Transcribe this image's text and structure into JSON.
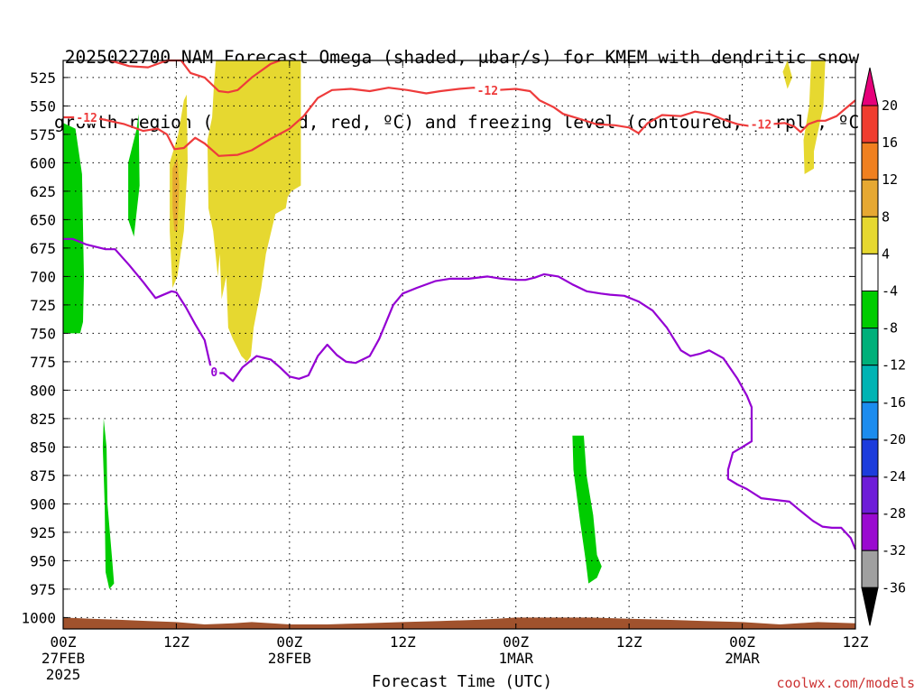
{
  "title": {
    "line1": "2025022700 NAM Forecast Omega (shaded, μbar/s) for KMEM with dendritic snow",
    "line2": "growth region (contoured, red, ºC) and freezing level (contoured, purple, ºC)"
  },
  "xlabel": "Forecast Time (UTC)",
  "credit": "coolwx.com/models",
  "colors": {
    "background": "#ffffff",
    "grid": "#000000",
    "snow_growth_contour": "#ee3b3b",
    "freezing_level_contour": "#9400d3",
    "terrain": "#a0522d"
  },
  "chart_data": {
    "type": "heatmap",
    "x_axis": {
      "ticks": [
        {
          "hour": 0,
          "label": "00Z",
          "sub": "27FEB",
          "sub2": "2025"
        },
        {
          "hour": 12,
          "label": "12Z"
        },
        {
          "hour": 24,
          "label": "00Z",
          "sub": "28FEB"
        },
        {
          "hour": 36,
          "label": "12Z"
        },
        {
          "hour": 48,
          "label": "00Z",
          "sub": "1MAR"
        },
        {
          "hour": 60,
          "label": "12Z"
        },
        {
          "hour": 72,
          "label": "00Z",
          "sub": "2MAR"
        },
        {
          "hour": 84,
          "label": "12Z"
        }
      ],
      "range_hours": [
        0,
        84
      ]
    },
    "y_axis": {
      "unit": "hPa",
      "range": [
        1010,
        510
      ],
      "ticks": [
        525,
        550,
        575,
        600,
        625,
        650,
        675,
        700,
        725,
        750,
        775,
        800,
        825,
        850,
        875,
        900,
        925,
        950,
        975,
        1000
      ]
    },
    "colorbar": {
      "labels": [
        "20",
        "16",
        "12",
        "8",
        "4",
        "-4",
        "-8",
        "-12",
        "-16",
        "-20",
        "-24",
        "-28",
        "-32",
        "-36"
      ],
      "levels": [
        20,
        16,
        12,
        8,
        4,
        -4,
        -8,
        -12,
        -16,
        -20,
        -24,
        -28,
        -32,
        -36
      ],
      "colors": [
        "#ee1c7a",
        "#f03d2f",
        "#f08020",
        "#e6a832",
        "#e6d830",
        "#ffffff",
        "#00cc00",
        "#00b07a",
        "#00b4b4",
        "#1c8cee",
        "#1c3cdc",
        "#6e1cd8",
        "#9a0ad0",
        "#a0a0a0"
      ],
      "top_color": "#e6007a",
      "bottom_color": "#000000"
    },
    "omega_regions": [
      {
        "level": "-8 to -4",
        "color": "#00cc00",
        "points": [
          [
            0,
            565
          ],
          [
            1.3,
            570
          ],
          [
            2,
            610
          ],
          [
            2.2,
            700
          ],
          [
            2.1,
            740
          ],
          [
            1.8,
            750
          ],
          [
            0,
            750
          ]
        ]
      },
      {
        "level": "-8 to -4",
        "color": "#00cc00",
        "points": [
          [
            7.8,
            570
          ],
          [
            8.0,
            557
          ],
          [
            8.1,
            620
          ],
          [
            7.5,
            665
          ],
          [
            6.9,
            650
          ],
          [
            6.9,
            600
          ]
        ]
      },
      {
        "level": "4 to 8",
        "color": "#e6d830",
        "points": [
          [
            11.3,
            600
          ],
          [
            12.2,
            575
          ],
          [
            12.8,
            545
          ],
          [
            13.1,
            540
          ],
          [
            13.2,
            600
          ],
          [
            12.8,
            660
          ],
          [
            12.1,
            700
          ],
          [
            11.6,
            710
          ],
          [
            11.3,
            660
          ]
        ]
      },
      {
        "level": "8 to 12",
        "color": "#e6a832",
        "points": [
          [
            11.6,
            605
          ],
          [
            12.1,
            595
          ],
          [
            12.3,
            620
          ],
          [
            12.1,
            660
          ],
          [
            11.8,
            660
          ],
          [
            11.6,
            640
          ]
        ]
      },
      {
        "level": "4 to 8",
        "color": "#e6d830",
        "points": [
          [
            16.2,
            510
          ],
          [
            25.2,
            510
          ],
          [
            25.2,
            620
          ],
          [
            24.2,
            625
          ],
          [
            23.8,
            630
          ],
          [
            23.6,
            640
          ],
          [
            22.5,
            645
          ],
          [
            21.5,
            680
          ],
          [
            21.0,
            710
          ],
          [
            20.2,
            745
          ],
          [
            19.9,
            770
          ],
          [
            19.5,
            775
          ],
          [
            18.9,
            770
          ],
          [
            18.0,
            755
          ],
          [
            17.5,
            745
          ],
          [
            17.3,
            700
          ],
          [
            16.8,
            720
          ],
          [
            16.6,
            680
          ],
          [
            16.4,
            700
          ],
          [
            15.9,
            660
          ],
          [
            15.4,
            640
          ],
          [
            15.3,
            580
          ],
          [
            15.8,
            560
          ],
          [
            16.0,
            530
          ]
        ]
      },
      {
        "level": "4 to 8",
        "color": "#e6d830",
        "points": [
          [
            76.8,
            510
          ],
          [
            77.3,
            525
          ],
          [
            76.8,
            535
          ],
          [
            76.3,
            520
          ]
        ]
      },
      {
        "level": "4 to 8",
        "color": "#e6d830",
        "points": [
          [
            79.3,
            510
          ],
          [
            80.8,
            510
          ],
          [
            80.6,
            550
          ],
          [
            79.6,
            590
          ],
          [
            79.6,
            605
          ],
          [
            78.6,
            610
          ],
          [
            78.5,
            580
          ],
          [
            79.1,
            550
          ]
        ]
      },
      {
        "level": "-8 to -4",
        "color": "#00cc00",
        "points": [
          [
            4.3,
            825
          ],
          [
            4.6,
            850
          ],
          [
            4.7,
            900
          ],
          [
            5.2,
            950
          ],
          [
            5.4,
            970
          ],
          [
            4.9,
            975
          ],
          [
            4.5,
            960
          ],
          [
            4.4,
            900
          ],
          [
            4.2,
            850
          ]
        ]
      },
      {
        "level": "-8 to -4",
        "color": "#00cc00",
        "points": [
          [
            54.0,
            840
          ],
          [
            55.2,
            840
          ],
          [
            55.5,
            875
          ],
          [
            56.2,
            910
          ],
          [
            56.6,
            945
          ],
          [
            57.1,
            955
          ],
          [
            56.6,
            965
          ],
          [
            55.7,
            970
          ],
          [
            55.4,
            950
          ],
          [
            54.8,
            915
          ],
          [
            54.1,
            870
          ]
        ]
      }
    ],
    "snow_growth_contours": [
      {
        "label": "-12",
        "label_at": [
          2.5,
          560
        ],
        "points": [
          [
            0,
            560
          ],
          [
            1.2,
            560
          ],
          [
            3.2,
            560
          ],
          [
            6.5,
            566
          ],
          [
            8.5,
            572
          ],
          [
            10.0,
            570
          ],
          [
            11.0,
            575
          ],
          [
            11.8,
            588
          ],
          [
            12.8,
            587
          ],
          [
            14.0,
            578
          ],
          [
            15.0,
            583
          ],
          [
            16.5,
            594
          ],
          [
            18.5,
            593
          ],
          [
            20.0,
            589
          ],
          [
            22.0,
            579
          ],
          [
            24.0,
            570
          ],
          [
            25.5,
            559
          ],
          [
            27.0,
            543
          ],
          [
            28.5,
            536
          ],
          [
            30.5,
            535
          ],
          [
            32.5,
            537
          ],
          [
            34.5,
            534
          ],
          [
            36.5,
            536
          ],
          [
            38.5,
            539
          ],
          [
            40.0,
            537
          ],
          [
            42.0,
            535
          ],
          [
            43.5,
            534
          ],
          [
            46.0,
            536
          ],
          [
            48.0,
            535
          ],
          [
            49.5,
            537
          ],
          [
            50.5,
            545
          ],
          [
            52.0,
            551
          ],
          [
            53.0,
            557
          ],
          [
            55.0,
            562
          ],
          [
            56.5,
            566
          ],
          [
            58.5,
            567
          ],
          [
            60.0,
            569
          ],
          [
            61.0,
            574
          ],
          [
            62.0,
            565
          ],
          [
            63.5,
            558
          ],
          [
            65.5,
            559
          ],
          [
            67.0,
            555
          ],
          [
            68.5,
            557
          ],
          [
            70.0,
            562
          ],
          [
            71.5,
            566
          ],
          [
            73.0,
            568
          ],
          [
            74.0,
            567
          ],
          [
            75.0,
            566
          ],
          [
            76.5,
            565
          ],
          [
            77.5,
            568
          ],
          [
            78.2,
            573
          ],
          [
            79.0,
            566
          ],
          [
            80.0,
            563
          ],
          [
            80.8,
            563
          ],
          [
            82.0,
            559
          ],
          [
            83.0,
            552
          ],
          [
            84.0,
            545
          ]
        ]
      },
      {
        "label": "-12",
        "label_at": [
          45.0,
          536
        ],
        "points": [
          [
            5.0,
            510
          ],
          [
            7.0,
            515
          ],
          [
            9.0,
            516
          ],
          [
            11.0,
            510
          ],
          [
            12.5,
            510
          ],
          [
            13.5,
            521
          ],
          [
            15.0,
            525
          ],
          [
            16.5,
            537
          ],
          [
            17.5,
            538
          ],
          [
            18.5,
            536
          ],
          [
            20.0,
            525
          ],
          [
            22.0,
            513
          ],
          [
            23.0,
            510
          ]
        ]
      },
      {
        "label": "-12",
        "label_at": [
          74.0,
          566
        ],
        "points": []
      }
    ],
    "freezing_level_contours": [
      {
        "label": "0",
        "label_at": [
          16.0,
          784
        ],
        "points": [
          [
            0,
            667
          ],
          [
            1.0,
            667
          ],
          [
            2.5,
            672
          ],
          [
            4.5,
            676
          ],
          [
            5.5,
            676
          ],
          [
            7.0,
            690
          ],
          [
            8.5,
            705
          ],
          [
            9.8,
            719
          ],
          [
            11.5,
            713
          ],
          [
            12.0,
            714
          ],
          [
            13.0,
            727
          ],
          [
            14.0,
            742
          ],
          [
            15.0,
            756
          ],
          [
            15.8,
            785
          ],
          [
            17.0,
            785
          ],
          [
            18.0,
            792
          ],
          [
            19.0,
            780
          ],
          [
            20.5,
            770
          ],
          [
            22.0,
            773
          ],
          [
            23.0,
            780
          ],
          [
            24.0,
            788
          ],
          [
            25.0,
            790
          ],
          [
            26.0,
            787
          ],
          [
            27.0,
            770
          ],
          [
            28.0,
            760
          ],
          [
            29.0,
            769
          ],
          [
            30.0,
            775
          ],
          [
            31.0,
            776
          ],
          [
            32.5,
            770
          ],
          [
            33.5,
            755
          ],
          [
            35.0,
            725
          ],
          [
            36.0,
            715
          ],
          [
            37.5,
            710
          ],
          [
            39.5,
            704
          ],
          [
            41.0,
            702
          ],
          [
            43.0,
            702
          ],
          [
            45.0,
            700
          ],
          [
            46.5,
            702
          ],
          [
            48.0,
            703
          ],
          [
            49.0,
            703
          ],
          [
            50.0,
            701
          ],
          [
            51.0,
            698
          ],
          [
            52.5,
            700
          ],
          [
            54.0,
            707
          ],
          [
            55.5,
            713
          ],
          [
            57.0,
            715
          ],
          [
            58.0,
            716
          ],
          [
            59.5,
            717
          ],
          [
            61.0,
            722
          ],
          [
            62.5,
            730
          ],
          [
            64.0,
            745
          ],
          [
            65.5,
            765
          ],
          [
            66.5,
            770
          ],
          [
            67.5,
            768
          ],
          [
            68.5,
            765
          ],
          [
            70.0,
            772
          ],
          [
            71.5,
            790
          ],
          [
            72.5,
            805
          ],
          [
            73.0,
            815
          ],
          [
            73.0,
            845
          ],
          [
            72.0,
            850
          ],
          [
            71.0,
            855
          ],
          [
            70.5,
            870
          ],
          [
            70.5,
            878
          ],
          [
            71.5,
            883
          ],
          [
            72.5,
            887
          ],
          [
            74.0,
            895
          ],
          [
            76.0,
            897
          ],
          [
            77.0,
            898
          ],
          [
            78.0,
            905
          ],
          [
            79.5,
            915
          ],
          [
            80.5,
            920
          ],
          [
            81.5,
            921
          ],
          [
            82.5,
            921
          ],
          [
            83.5,
            930
          ],
          [
            84.0,
            940
          ]
        ]
      }
    ],
    "terrain_top_hpa": [
      [
        0,
        1000
      ],
      [
        3,
        1001
      ],
      [
        6,
        1002
      ],
      [
        9,
        1003
      ],
      [
        12,
        1004
      ],
      [
        15,
        1006
      ],
      [
        18,
        1005
      ],
      [
        20,
        1004
      ],
      [
        24,
        1006
      ],
      [
        28,
        1006
      ],
      [
        32,
        1005
      ],
      [
        36,
        1004
      ],
      [
        40,
        1003
      ],
      [
        44,
        1002
      ],
      [
        46,
        1001
      ],
      [
        48,
        1000
      ],
      [
        52,
        1000
      ],
      [
        56,
        1000
      ],
      [
        60,
        1001
      ],
      [
        64,
        1002
      ],
      [
        68,
        1003
      ],
      [
        72,
        1004
      ],
      [
        76,
        1006
      ],
      [
        80,
        1004
      ],
      [
        84,
        1005
      ]
    ]
  }
}
